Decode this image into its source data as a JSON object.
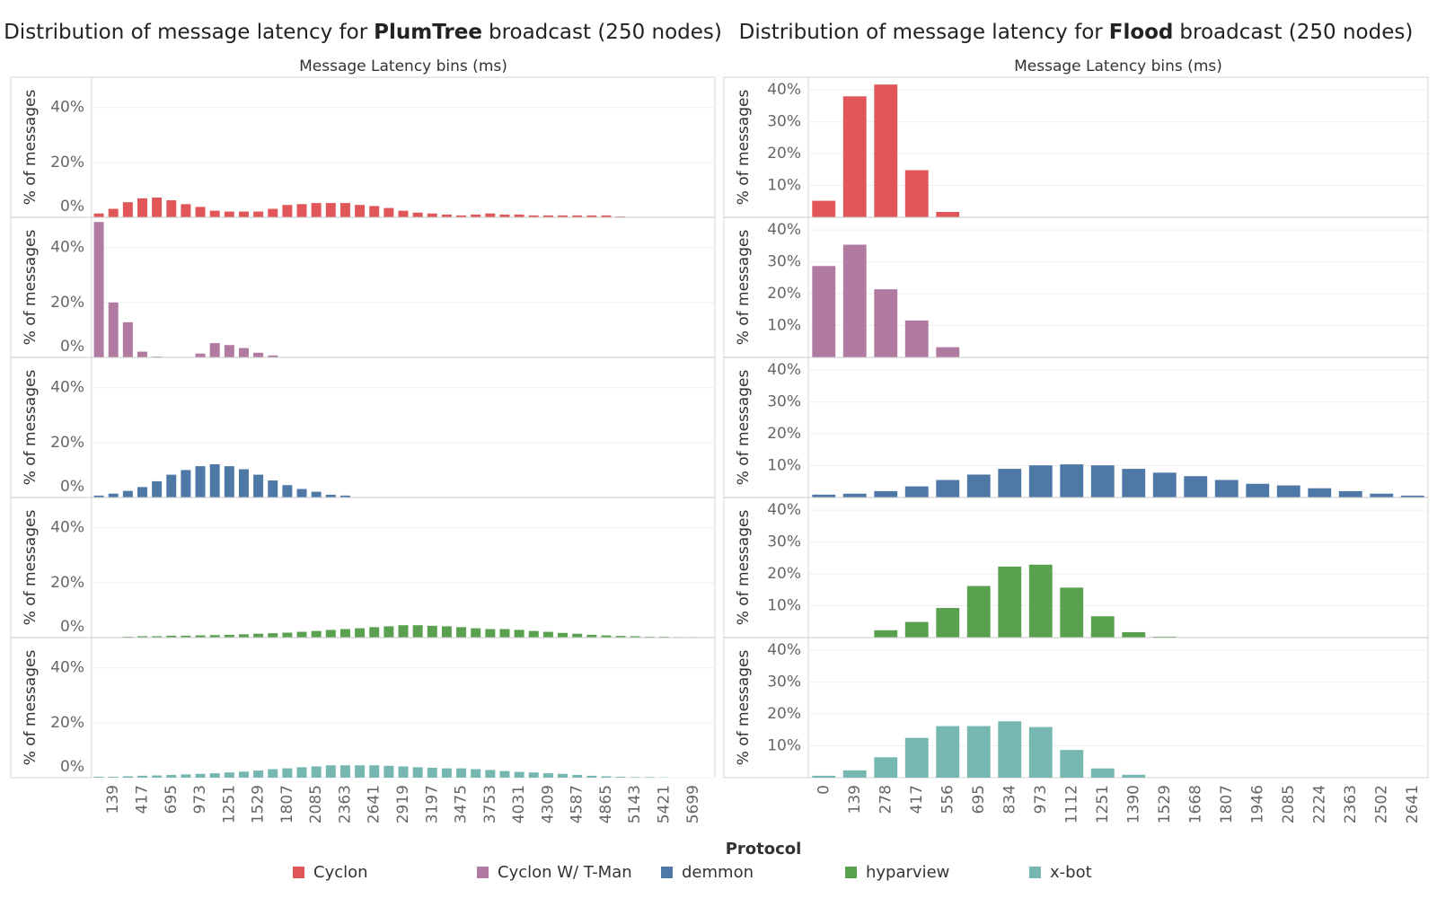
{
  "chart_data": [
    {
      "type": "bar",
      "title": [
        "Distribution of message latency for",
        "PlumTree",
        "broadcast (250 nodes)"
      ],
      "xlabel": "Message Latency bins (ms)",
      "ylabel": "% of messages",
      "categories": [
        null,
        139,
        null,
        417,
        null,
        695,
        null,
        973,
        null,
        1251,
        null,
        1529,
        null,
        1807,
        null,
        2085,
        null,
        2363,
        null,
        2641,
        null,
        2919,
        null,
        3197,
        null,
        3475,
        null,
        3753,
        null,
        4031,
        null,
        4309,
        null,
        4587,
        null,
        4865,
        null,
        5143,
        null,
        5421,
        null,
        5699,
        null
      ],
      "ylim": [
        0,
        51
      ],
      "yticks": [
        {
          "value": 0,
          "label": "0%"
        },
        {
          "value": 20,
          "label": "20%"
        },
        {
          "value": 40,
          "label": "40%"
        }
      ],
      "grid": true,
      "series": [
        {
          "name": "Cyclon",
          "color": "#e15759",
          "values": [
            1.4,
            3.1,
            5.5,
            6.9,
            7.2,
            6.2,
            4.8,
            3.8,
            2.4,
            2.1,
            2.1,
            2.1,
            3.1,
            4.5,
            4.8,
            5.2,
            5.2,
            5.2,
            4.5,
            4.1,
            3.4,
            2.4,
            1.7,
            1.4,
            1.0,
            0.7,
            1.0,
            1.4,
            1.0,
            1.0,
            0.7,
            0.7,
            0.7,
            0.7,
            0.7,
            0.7,
            0.3,
            0,
            0,
            0,
            0,
            0,
            0
          ]
        },
        {
          "name": "Cyclon W/ T-Man",
          "color": "#b07aa1",
          "values": [
            49.3,
            20,
            12.8,
            2.1,
            0.3,
            0,
            0,
            1.4,
            5.2,
            4.5,
            3.4,
            1.7,
            0.7,
            0,
            0,
            0,
            0,
            0,
            0,
            0,
            0,
            0,
            0,
            0,
            0,
            0,
            0,
            0,
            0,
            0,
            0,
            0,
            0,
            0,
            0,
            0,
            0,
            0,
            0,
            0,
            0,
            0,
            0
          ]
        },
        {
          "name": "demmon",
          "color": "#4e79a7",
          "values": [
            0.7,
            1.4,
            2.4,
            3.8,
            5.9,
            8.3,
            10,
            11.4,
            12.1,
            11.4,
            10.3,
            8.3,
            6.2,
            4.5,
            3.1,
            2.1,
            1.0,
            0.7,
            0,
            0,
            0,
            0,
            0,
            0,
            0,
            0,
            0,
            0,
            0,
            0,
            0,
            0,
            0,
            0,
            0,
            0,
            0,
            0,
            0,
            0,
            0,
            0,
            0
          ]
        },
        {
          "name": "hyparview",
          "color": "#59a14f",
          "values": [
            0,
            0,
            0.3,
            0.5,
            0.5,
            0.7,
            0.7,
            0.8,
            0.9,
            1.0,
            1.2,
            1.4,
            1.6,
            1.8,
            2.1,
            2.4,
            2.8,
            3.1,
            3.4,
            3.8,
            4.1,
            4.5,
            4.5,
            4.3,
            4.1,
            3.8,
            3.4,
            3.1,
            3.1,
            2.8,
            2.4,
            2.1,
            1.7,
            1.4,
            1.0,
            0.8,
            0.6,
            0.5,
            0.3,
            0.3,
            0.2,
            0.2,
            0.1
          ]
        },
        {
          "name": "x-bot",
          "color": "#76b7b2",
          "values": [
            0.3,
            0.3,
            0.5,
            0.7,
            0.8,
            1.0,
            1.2,
            1.4,
            1.6,
            1.9,
            2.2,
            2.6,
            3.1,
            3.4,
            3.8,
            4.1,
            4.5,
            4.5,
            4.5,
            4.5,
            4.3,
            4.1,
            3.8,
            3.6,
            3.4,
            3.4,
            3.1,
            2.8,
            2.4,
            2.1,
            1.9,
            1.6,
            1.4,
            1.0,
            0.7,
            0.5,
            0.3,
            0.2,
            0.2,
            0.1,
            0,
            0,
            0
          ]
        }
      ]
    },
    {
      "type": "bar",
      "title": [
        "Distribution of message latency for",
        "Flood",
        "broadcast (250 nodes)"
      ],
      "xlabel": "Message Latency bins (ms)",
      "ylabel": "% of messages",
      "categories": [
        0,
        139,
        278,
        417,
        556,
        695,
        834,
        973,
        1112,
        1251,
        1390,
        1529,
        1668,
        1807,
        1946,
        2085,
        2224,
        2363,
        2502,
        2641
      ],
      "ylim": [
        0,
        44
      ],
      "yticks": [
        {
          "value": 10,
          "label": "10%"
        },
        {
          "value": 20,
          "label": "20%"
        },
        {
          "value": 30,
          "label": "30%"
        },
        {
          "value": 40,
          "label": "40%"
        }
      ],
      "grid": true,
      "series": [
        {
          "color": "#e15759",
          "values": [
            5.2,
            38,
            41.7,
            14.8,
            1.7,
            0,
            0,
            0,
            0,
            0,
            0,
            0,
            0,
            0,
            0,
            0,
            0,
            0,
            0,
            0
          ]
        },
        {
          "color": "#b07aa1",
          "values": [
            28.7,
            35.4,
            21.4,
            11.6,
            3.2,
            0,
            0,
            0,
            0,
            0,
            0,
            0,
            0,
            0,
            0,
            0,
            0,
            0,
            0,
            0
          ]
        },
        {
          "color": "#4e79a7",
          "values": [
            0.9,
            1.2,
            2.0,
            3.5,
            5.5,
            7.2,
            9,
            10.1,
            10.4,
            10.1,
            9,
            7.8,
            6.7,
            5.5,
            4.3,
            3.8,
            2.9,
            2.0,
            1.2,
            0.6
          ]
        },
        {
          "color": "#59a14f",
          "values": [
            0,
            0,
            2.3,
            4.9,
            9.3,
            16.2,
            22.3,
            22.9,
            15.7,
            6.7,
            1.7,
            0.3,
            0,
            0,
            0,
            0,
            0,
            0,
            0,
            0
          ]
        },
        {
          "color": "#76b7b2",
          "values": [
            0.6,
            2.3,
            6.4,
            12.5,
            16.2,
            16.2,
            17.7,
            15.9,
            8.7,
            2.9,
            0.9,
            0,
            0,
            0,
            0,
            0,
            0,
            0,
            0,
            0
          ]
        }
      ]
    }
  ],
  "legend": {
    "title": "Protocol"
  }
}
